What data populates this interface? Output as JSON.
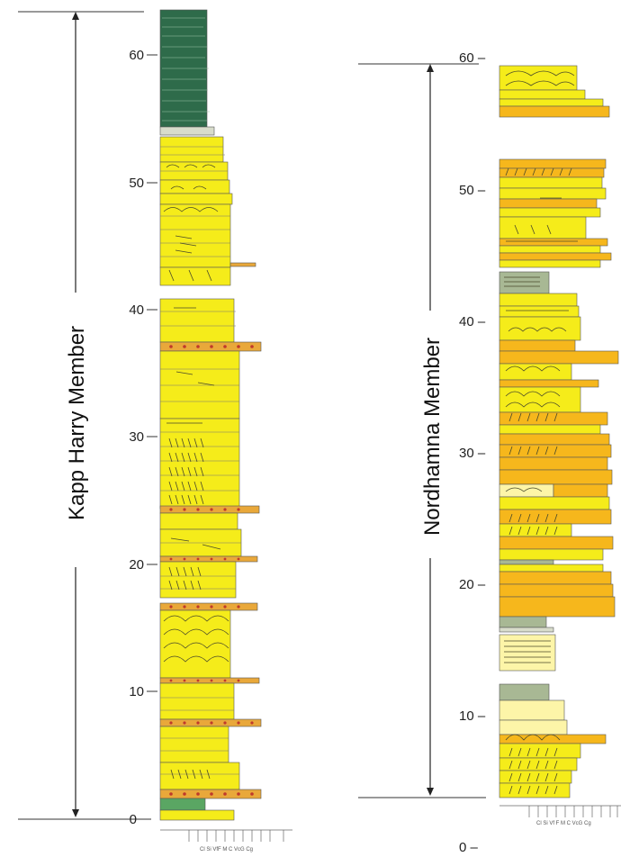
{
  "left_column": {
    "member_label": "Kapp Harry Member",
    "ticks": [
      "0",
      "10",
      "20",
      "30",
      "40",
      "50",
      "60"
    ],
    "grain_scale": "Cl Si VfF M C VcG Cg"
  },
  "right_column": {
    "member_label": "Nordhamna Member",
    "ticks": [
      "0 –",
      "10 –",
      "20 –",
      "30 –",
      "40 –",
      "50 –",
      "60 –"
    ],
    "grain_scale": "Cl Si Vf F M C VcG Cg"
  },
  "colors": {
    "sandstone": "#f5ec1a",
    "coarse_sandstone": "#f6b71c",
    "dark_shale": "#2e6b4a",
    "green_mudstone": "#5aa663",
    "grey_green": "#a8b894",
    "pale_sand": "#fdf5a8",
    "conglomerate": "#e9a83a",
    "pebble": "#c0392b"
  }
}
